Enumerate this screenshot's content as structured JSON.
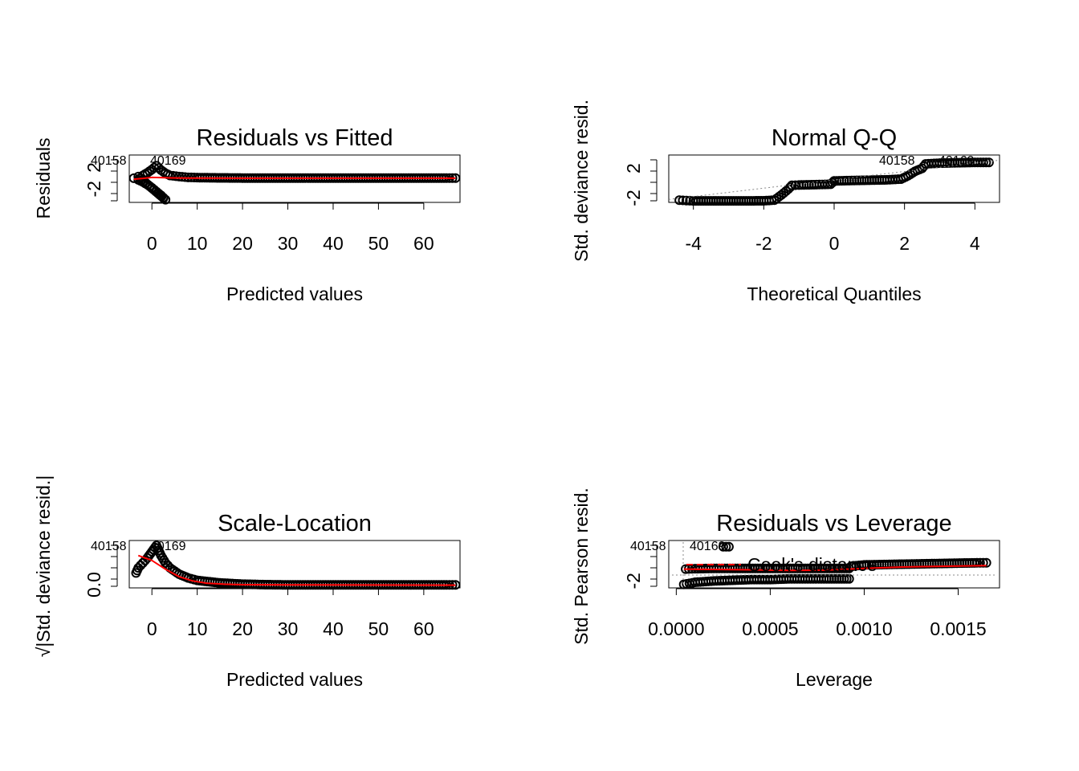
{
  "chart_data": [
    {
      "type": "scatter",
      "title": "Residuals vs Fitted",
      "xlabel": "Predicted values",
      "ylabel": "Residuals",
      "xlim": [
        -5,
        68
      ],
      "ylim": [
        -4.5,
        4.3
      ],
      "xticks": [
        0,
        10,
        20,
        30,
        40,
        50,
        60
      ],
      "yticks": [
        -2,
        2
      ],
      "point_labels": [
        "40158",
        "40169"
      ],
      "series": [
        {
          "name": "",
          "style": "points",
          "x": [
            -4,
            -3,
            -2,
            -1,
            0,
            1,
            2,
            3,
            -3,
            -2,
            -1,
            0,
            1,
            2,
            3,
            4,
            6,
            8,
            10,
            15,
            20,
            25,
            30,
            35,
            40,
            45,
            50,
            55,
            60,
            65,
            67
          ],
          "y": [
            0,
            -0.3,
            -0.7,
            -1.2,
            -1.8,
            -2.5,
            -3.2,
            -4.0,
            0.3,
            0.5,
            1.0,
            1.6,
            2.3,
            1.5,
            0.9,
            0.5,
            0.3,
            0.15,
            0.1,
            0.05,
            0.02,
            0.02,
            0.02,
            0.02,
            0.02,
            0.02,
            0.02,
            0.02,
            0.02,
            0.02,
            0.02
          ]
        },
        {
          "name": "",
          "style": "smooth",
          "x": [
            -4,
            -2,
            0,
            2,
            4,
            8,
            12,
            20,
            67
          ],
          "y": [
            -0.2,
            -0.05,
            0.15,
            0.1,
            0.05,
            0.02,
            0.01,
            0.0,
            0.0
          ]
        }
      ]
    },
    {
      "type": "scatter",
      "title": "Normal Q-Q",
      "xlabel": "Theoretical Quantiles",
      "ylabel": "Std. deviance resid.",
      "xlim": [
        -4.7,
        4.7
      ],
      "ylim": [
        -2.6,
        3.8
      ],
      "xticks": [
        -4,
        -2,
        0,
        2,
        4
      ],
      "yticks": [
        -2,
        2
      ],
      "point_labels": [
        "40158",
        "40169"
      ],
      "series": [
        {
          "name": "",
          "style": "points",
          "x": [
            -4.4,
            -4.2,
            -4,
            -3.5,
            -3,
            -2.5,
            -2,
            -1.7,
            -1.5,
            -1.3,
            -1.2,
            -1,
            -0.5,
            -0.1,
            0,
            0.5,
            1,
            1.5,
            1.9,
            2.1,
            2.3,
            2.5,
            2.6,
            3,
            3.5,
            4,
            4.4
          ],
          "y": [
            -2.3,
            -2.35,
            -2.4,
            -2.4,
            -2.4,
            -2.4,
            -2.38,
            -2.3,
            -1.6,
            -0.8,
            -0.3,
            -0.25,
            -0.2,
            -0.15,
            0.3,
            0.35,
            0.4,
            0.45,
            0.55,
            1.0,
            1.6,
            2.0,
            2.6,
            2.7,
            2.75,
            2.8,
            2.8
          ]
        },
        {
          "name": "",
          "style": "refline",
          "x": [
            -4.7,
            4.7
          ],
          "y": [
            -2.2,
            3.1
          ]
        }
      ]
    },
    {
      "type": "scatter",
      "title": "Scale-Location",
      "xlabel": "Predicted values",
      "ylabel": "√|Std. deviance resid.|",
      "xlim": [
        -5,
        68
      ],
      "ylim": [
        -0.1,
        1.8
      ],
      "xticks": [
        0,
        10,
        20,
        30,
        40,
        50,
        60
      ],
      "yticks": [
        0.0
      ],
      "point_labels": [
        "40158",
        "40169"
      ],
      "series": [
        {
          "name": "",
          "style": "points",
          "x": [
            -3.5,
            -3,
            -2,
            -1,
            0,
            1,
            2,
            3,
            4,
            6,
            8,
            10,
            15,
            20,
            25,
            30,
            35,
            40,
            45,
            50,
            55,
            60,
            65,
            67
          ],
          "y": [
            0.5,
            0.7,
            0.9,
            1.1,
            1.35,
            1.6,
            1.2,
            0.9,
            0.7,
            0.45,
            0.3,
            0.2,
            0.1,
            0.05,
            0.03,
            0.02,
            0.02,
            0.02,
            0.02,
            0.02,
            0.02,
            0.02,
            0.02,
            0.02
          ]
        },
        {
          "name": "",
          "style": "smooth",
          "x": [
            -3,
            0,
            3,
            6,
            9,
            12,
            16,
            20,
            30,
            67
          ],
          "y": [
            1.2,
            1.0,
            0.65,
            0.35,
            0.18,
            0.09,
            0.05,
            0.03,
            0.02,
            0.01
          ]
        }
      ]
    },
    {
      "type": "scatter",
      "title": "Residuals vs Leverage",
      "xlabel": "Leverage",
      "ylabel": "Std. Pearson resid.",
      "xlim": [
        -4e-05,
        0.00172
      ],
      "ylim": [
        -3.0,
        3.8
      ],
      "xticks": [
        0.0,
        0.0005,
        0.001,
        0.0015
      ],
      "xtick_labels": [
        "0.0000",
        "0.0005",
        "0.0010",
        "0.0015"
      ],
      "yticks": [
        -2
      ],
      "point_labels": [
        "40158",
        "40169"
      ],
      "legend": {
        "label": "Cook's distance",
        "position": "top-left"
      },
      "series": [
        {
          "name": "",
          "style": "points",
          "x": [
            4e-05,
            0.0001,
            0.0002,
            0.0003,
            0.0004,
            0.0005,
            0.0006,
            0.0007,
            0.0008,
            0.00092,
            5e-05,
            0.0001,
            0.0002,
            0.0003,
            0.0005,
            0.0007,
            0.00092,
            0.00093,
            0.001,
            0.0012,
            0.0014,
            0.0016,
            0.00165,
            0.00025,
            0.00028
          ],
          "y": [
            -2.5,
            -2.2,
            -2.0,
            -1.9,
            -1.8,
            -1.8,
            -1.7,
            -1.7,
            -1.7,
            -1.7,
            -0.3,
            -0.25,
            -0.2,
            -0.2,
            -0.2,
            -0.2,
            -0.2,
            0.1,
            0.3,
            0.4,
            0.5,
            0.6,
            0.6,
            2.9,
            2.9
          ]
        },
        {
          "name": "",
          "style": "smooth",
          "x": [
            4e-05,
            0.0002,
            0.0004,
            0.0006,
            0.0008,
            0.001,
            0.0012,
            0.0014,
            0.00165
          ],
          "y": [
            -0.3,
            -0.35,
            -0.4,
            -0.5,
            -0.45,
            -0.2,
            0.0,
            0.1,
            0.2
          ]
        }
      ]
    }
  ]
}
